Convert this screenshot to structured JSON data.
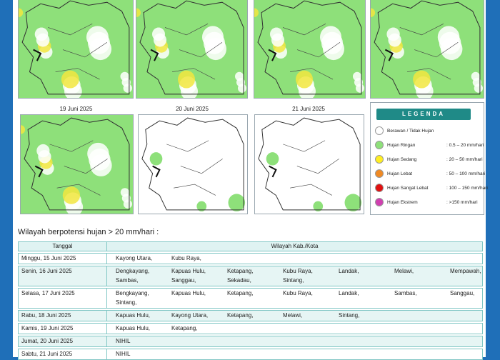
{
  "maps": [
    {
      "title": "19 Juni 2025"
    },
    {
      "title": "20 Juni 2025"
    },
    {
      "title": "21 Juni 2025"
    }
  ],
  "legend": {
    "title": "LEGENDA",
    "items": [
      {
        "label": "Berawan / Tidak Hujan",
        "range": "",
        "color": "#ffffff"
      },
      {
        "label": "Hujan Ringan",
        "range": ": 0.5 – 20 mm/hari",
        "color": "#8ee07a"
      },
      {
        "label": "Hujan Sedang",
        "range": ": 20 – 50 mm/hari",
        "color": "#ffee22"
      },
      {
        "label": "Hujan Lebat",
        "range": ": 50 – 100 mm/hari",
        "color": "#f08a24"
      },
      {
        "label": "Hujan Sangat Lebat",
        "range": ": 100 – 150 mm/hari",
        "color": "#e01010"
      },
      {
        "label": "Hujan Ekstrem",
        "range": ": >150 mm/hari",
        "color": "#d040b0"
      }
    ]
  },
  "heading": "Wilayah berpotensi hujan > 20 mm/hari :",
  "table": {
    "header": [
      "Tanggal",
      "Wilayah Kab./Kota"
    ],
    "rows": [
      {
        "date": "Minggu, 15 Juni 2025",
        "regions": [
          "Kayong Utara,",
          "Kubu Raya,"
        ]
      },
      {
        "date": "Senin, 16 Juni 2025",
        "regions": [
          "Dengkayang,",
          "Kapuas Hulu,",
          "Ketapang,",
          "Kubu Raya,",
          "Landak,",
          "Melawi,",
          "Mempawah,",
          "Sambas,",
          "Sanggau,",
          "Sekadau,",
          "Sintang,"
        ]
      },
      {
        "date": "Selasa, 17 Juni 2025",
        "regions": [
          "Bengkayang,",
          "Kapuas Hulu,",
          "Ketapang,",
          "Kubu Raya,",
          "Landak,",
          "Sambas,",
          "Sanggau,",
          "Sintang,"
        ]
      },
      {
        "date": "Rabu, 18 Juni 2025",
        "regions": [
          "Kapuas Hulu,",
          "Kayong Utara,",
          "Ketapang,",
          "Melawi,",
          "Sintang,"
        ]
      },
      {
        "date": "Kamis, 19 Juni 2025",
        "regions": [
          "Kapuas Hulu,",
          "Ketapang,"
        ]
      },
      {
        "date": "Jumat, 20 Juni 2025",
        "regions": [
          "NIHIL"
        ]
      },
      {
        "date": "Sabtu, 21 Juni 2025",
        "regions": [
          "NIHIL"
        ]
      }
    ]
  }
}
